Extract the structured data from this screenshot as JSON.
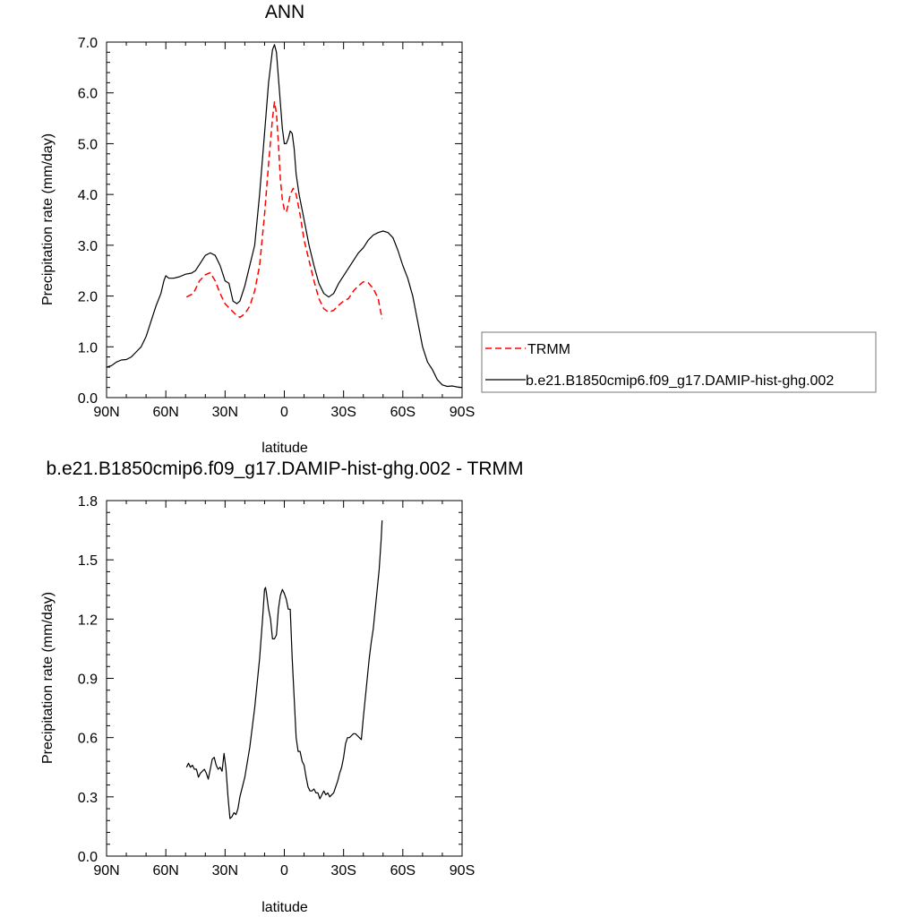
{
  "chart_data": [
    {
      "type": "line",
      "title": "ANN",
      "xlabel": "latitude",
      "ylabel": "Precipitation rate (mm/day)",
      "xlim": [
        90,
        -90
      ],
      "ylim": [
        0,
        7
      ],
      "x_ticks": [
        {
          "value": 90,
          "label": "90N"
        },
        {
          "value": 60,
          "label": "60N"
        },
        {
          "value": 30,
          "label": "30N"
        },
        {
          "value": 0,
          "label": "0"
        },
        {
          "value": -30,
          "label": "30S"
        },
        {
          "value": -60,
          "label": "60S"
        },
        {
          "value": -90,
          "label": "90S"
        }
      ],
      "y_ticks": [
        {
          "value": 0,
          "label": "0.0"
        },
        {
          "value": 1,
          "label": "1.0"
        },
        {
          "value": 2,
          "label": "2.0"
        },
        {
          "value": 3,
          "label": "3.0"
        },
        {
          "value": 4,
          "label": "4.0"
        },
        {
          "value": 5,
          "label": "5.0"
        },
        {
          "value": 6,
          "label": "6.0"
        },
        {
          "value": 7,
          "label": "7.0"
        }
      ],
      "legend": {
        "placement": "right"
      },
      "series": [
        {
          "name": "TRMM",
          "color": "#ff0000",
          "dash": "dashed",
          "points": [
            [
              49.5,
              1.98
            ],
            [
              46,
              2.05
            ],
            [
              43,
              2.3
            ],
            [
              40,
              2.42
            ],
            [
              37.5,
              2.46
            ],
            [
              35,
              2.3
            ],
            [
              32.5,
              2.05
            ],
            [
              30,
              1.85
            ],
            [
              27.5,
              1.75
            ],
            [
              25,
              1.65
            ],
            [
              22.5,
              1.58
            ],
            [
              20,
              1.65
            ],
            [
              17.5,
              1.8
            ],
            [
              15,
              2.1
            ],
            [
              12.5,
              2.6
            ],
            [
              10,
              3.6
            ],
            [
              8,
              4.6
            ],
            [
              6,
              5.5
            ],
            [
              5,
              5.82
            ],
            [
              4,
              5.6
            ],
            [
              3,
              5.0
            ],
            [
              2,
              4.3
            ],
            [
              1,
              3.9
            ],
            [
              0,
              3.7
            ],
            [
              -1,
              3.65
            ],
            [
              -2,
              3.8
            ],
            [
              -3,
              4.0
            ],
            [
              -4.5,
              4.12
            ],
            [
              -6,
              4.0
            ],
            [
              -8,
              3.6
            ],
            [
              -10,
              3.1
            ],
            [
              -12.5,
              2.7
            ],
            [
              -15,
              2.3
            ],
            [
              -17.5,
              1.95
            ],
            [
              -20,
              1.75
            ],
            [
              -22.5,
              1.68
            ],
            [
              -25,
              1.72
            ],
            [
              -27.5,
              1.82
            ],
            [
              -30,
              1.9
            ],
            [
              -32.5,
              1.95
            ],
            [
              -35,
              2.1
            ],
            [
              -37.5,
              2.2
            ],
            [
              -40,
              2.28
            ],
            [
              -42.5,
              2.26
            ],
            [
              -45,
              2.15
            ],
            [
              -47.5,
              1.95
            ],
            [
              -49.5,
              1.55
            ]
          ]
        },
        {
          "name": "b.e21.B1850cmip6.f09_g17.DAMIP-hist-ghg.002",
          "color": "#000000",
          "dash": "solid",
          "points": [
            [
              90,
              0.6
            ],
            [
              87.5,
              0.63
            ],
            [
              85,
              0.7
            ],
            [
              82.5,
              0.74
            ],
            [
              80,
              0.75
            ],
            [
              77.5,
              0.8
            ],
            [
              75,
              0.9
            ],
            [
              72.5,
              1.0
            ],
            [
              70,
              1.2
            ],
            [
              67.5,
              1.5
            ],
            [
              65,
              1.8
            ],
            [
              62.5,
              2.05
            ],
            [
              61,
              2.3
            ],
            [
              60,
              2.4
            ],
            [
              58.5,
              2.35
            ],
            [
              56,
              2.35
            ],
            [
              53,
              2.38
            ],
            [
              50,
              2.43
            ],
            [
              47,
              2.45
            ],
            [
              45,
              2.5
            ],
            [
              42.5,
              2.65
            ],
            [
              40,
              2.8
            ],
            [
              37.5,
              2.85
            ],
            [
              35,
              2.8
            ],
            [
              32.5,
              2.6
            ],
            [
              30,
              2.3
            ],
            [
              28,
              2.25
            ],
            [
              26,
              1.9
            ],
            [
              24,
              1.85
            ],
            [
              22.5,
              1.9
            ],
            [
              20,
              2.2
            ],
            [
              17.5,
              2.6
            ],
            [
              15,
              3.0
            ],
            [
              12.5,
              4.0
            ],
            [
              10,
              5.2
            ],
            [
              8,
              6.2
            ],
            [
              6,
              6.85
            ],
            [
              5,
              6.95
            ],
            [
              4,
              6.8
            ],
            [
              3,
              6.3
            ],
            [
              2,
              5.8
            ],
            [
              1,
              5.3
            ],
            [
              0,
              5.0
            ],
            [
              -1,
              5.0
            ],
            [
              -2,
              5.1
            ],
            [
              -3,
              5.25
            ],
            [
              -4,
              5.2
            ],
            [
              -5,
              4.9
            ],
            [
              -6,
              4.4
            ],
            [
              -7.5,
              4.0
            ],
            [
              -10,
              3.5
            ],
            [
              -12.5,
              3.0
            ],
            [
              -15,
              2.6
            ],
            [
              -17.5,
              2.25
            ],
            [
              -20,
              2.05
            ],
            [
              -22.5,
              1.98
            ],
            [
              -25,
              2.05
            ],
            [
              -27.5,
              2.25
            ],
            [
              -30,
              2.4
            ],
            [
              -32.5,
              2.55
            ],
            [
              -35,
              2.7
            ],
            [
              -37.5,
              2.85
            ],
            [
              -40,
              2.95
            ],
            [
              -42.5,
              3.1
            ],
            [
              -45,
              3.2
            ],
            [
              -47.5,
              3.25
            ],
            [
              -50,
              3.28
            ],
            [
              -52.5,
              3.25
            ],
            [
              -55,
              3.15
            ],
            [
              -57.5,
              2.9
            ],
            [
              -60,
              2.6
            ],
            [
              -62.5,
              2.35
            ],
            [
              -65,
              2.0
            ],
            [
              -67.5,
              1.5
            ],
            [
              -70,
              1.0
            ],
            [
              -72.5,
              0.7
            ],
            [
              -75,
              0.55
            ],
            [
              -77.5,
              0.35
            ],
            [
              -80,
              0.25
            ],
            [
              -82.5,
              0.22
            ],
            [
              -85,
              0.23
            ],
            [
              -87.5,
              0.21
            ],
            [
              -90,
              0.2
            ]
          ]
        }
      ]
    },
    {
      "type": "line",
      "title": "b.e21.B1850cmip6.f09_g17.DAMIP-hist-ghg.002 - TRMM",
      "xlabel": "latitude",
      "ylabel": "Precipitation rate (mm/day)",
      "xlim": [
        90,
        -90
      ],
      "ylim": [
        0,
        1.8
      ],
      "x_ticks": [
        {
          "value": 90,
          "label": "90N"
        },
        {
          "value": 60,
          "label": "60N"
        },
        {
          "value": 30,
          "label": "30N"
        },
        {
          "value": 0,
          "label": "0"
        },
        {
          "value": -30,
          "label": "30S"
        },
        {
          "value": -60,
          "label": "60S"
        },
        {
          "value": -90,
          "label": "90S"
        }
      ],
      "y_ticks": [
        {
          "value": 0,
          "label": "0.0"
        },
        {
          "value": 0.3,
          "label": "0.3"
        },
        {
          "value": 0.6,
          "label": "0.6"
        },
        {
          "value": 0.9,
          "label": "0.9"
        },
        {
          "value": 1.2,
          "label": "1.2"
        },
        {
          "value": 1.5,
          "label": "1.5"
        },
        {
          "value": 1.8,
          "label": "1.8"
        }
      ],
      "series": [
        {
          "color": "#000000",
          "dash": "solid",
          "points": [
            [
              49.5,
              0.45
            ],
            [
              48.5,
              0.47
            ],
            [
              47.5,
              0.45
            ],
            [
              46.5,
              0.46
            ],
            [
              45.5,
              0.44
            ],
            [
              44.5,
              0.44
            ],
            [
              43.5,
              0.4
            ],
            [
              42.5,
              0.42
            ],
            [
              41.5,
              0.43
            ],
            [
              40.5,
              0.44
            ],
            [
              39.5,
              0.42
            ],
            [
              38.5,
              0.39
            ],
            [
              37.5,
              0.44
            ],
            [
              36.5,
              0.49
            ],
            [
              35.5,
              0.5
            ],
            [
              34.5,
              0.46
            ],
            [
              33.5,
              0.44
            ],
            [
              32.5,
              0.45
            ],
            [
              31.5,
              0.43
            ],
            [
              30.5,
              0.52
            ],
            [
              29.5,
              0.44
            ],
            [
              28.5,
              0.3
            ],
            [
              27.5,
              0.19
            ],
            [
              26.5,
              0.2
            ],
            [
              25.5,
              0.22
            ],
            [
              24.5,
              0.21
            ],
            [
              23.5,
              0.24
            ],
            [
              22.5,
              0.3
            ],
            [
              20,
              0.4
            ],
            [
              17.5,
              0.55
            ],
            [
              15,
              0.75
            ],
            [
              12.5,
              1.0
            ],
            [
              11,
              1.2
            ],
            [
              10,
              1.35
            ],
            [
              9.5,
              1.36
            ],
            [
              9,
              1.33
            ],
            [
              8,
              1.25
            ],
            [
              7,
              1.2
            ],
            [
              6.5,
              1.15
            ],
            [
              6,
              1.1
            ],
            [
              5,
              1.1
            ],
            [
              4,
              1.12
            ],
            [
              3,
              1.25
            ],
            [
              2,
              1.32
            ],
            [
              1,
              1.35
            ],
            [
              0,
              1.33
            ],
            [
              -1,
              1.3
            ],
            [
              -2,
              1.25
            ],
            [
              -3,
              1.25
            ],
            [
              -4,
              1.0
            ],
            [
              -5,
              0.8
            ],
            [
              -6,
              0.6
            ],
            [
              -7,
              0.53
            ],
            [
              -8,
              0.53
            ],
            [
              -9,
              0.48
            ],
            [
              -10,
              0.46
            ],
            [
              -11,
              0.4
            ],
            [
              -12,
              0.35
            ],
            [
              -13,
              0.33
            ],
            [
              -14,
              0.33
            ],
            [
              -15,
              0.34
            ],
            [
              -16,
              0.32
            ],
            [
              -17,
              0.32
            ],
            [
              -18,
              0.29
            ],
            [
              -19,
              0.31
            ],
            [
              -20,
              0.33
            ],
            [
              -21,
              0.31
            ],
            [
              -22,
              0.32
            ],
            [
              -23,
              0.3
            ],
            [
              -24,
              0.31
            ],
            [
              -25,
              0.32
            ],
            [
              -26,
              0.35
            ],
            [
              -27,
              0.38
            ],
            [
              -28,
              0.42
            ],
            [
              -29,
              0.45
            ],
            [
              -30,
              0.5
            ],
            [
              -31,
              0.57
            ],
            [
              -32,
              0.6
            ],
            [
              -33,
              0.6
            ],
            [
              -34,
              0.61
            ],
            [
              -35,
              0.62
            ],
            [
              -36,
              0.62
            ],
            [
              -37,
              0.61
            ],
            [
              -38,
              0.6
            ],
            [
              -39,
              0.59
            ],
            [
              -40,
              0.7
            ],
            [
              -41,
              0.8
            ],
            [
              -42,
              0.9
            ],
            [
              -43,
              1.0
            ],
            [
              -44,
              1.08
            ],
            [
              -45,
              1.15
            ],
            [
              -46,
              1.25
            ],
            [
              -47,
              1.35
            ],
            [
              -48,
              1.45
            ],
            [
              -49,
              1.6
            ],
            [
              -49.5,
              1.7
            ]
          ]
        }
      ]
    }
  ]
}
